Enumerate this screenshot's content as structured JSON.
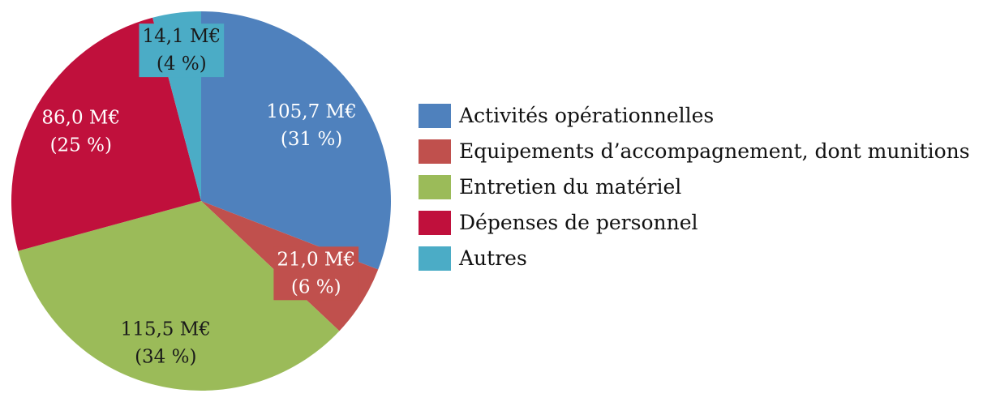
{
  "chart_data": {
    "type": "pie",
    "title": "",
    "categories": [
      "Activités opérationnelles",
      "Equipements d’accompagnement, dont munitions",
      "Entretien du matériel",
      "Dépenses de personnel",
      "Autres"
    ],
    "values": [
      105.7,
      21.0,
      115.5,
      86.0,
      14.1
    ],
    "percentages": [
      31,
      6,
      34,
      25,
      4
    ],
    "value_labels": [
      "105,7 M€",
      "21,0 M€",
      "115,5 M€",
      "86,0 M€",
      "14,1 M€"
    ],
    "percent_labels": [
      "(31 %)",
      "(6 %)",
      "(34 %)",
      "(25 %)",
      "(4 %)"
    ],
    "colors": [
      "#4F81BD",
      "#C0504D",
      "#9BBB59",
      "#C0103C",
      "#4BACC6"
    ],
    "label_colors": [
      "#ffffff",
      "#ffffff",
      "#1a1a1a",
      "#ffffff",
      "#1a1a1a"
    ],
    "legend": {
      "position": "right"
    }
  }
}
